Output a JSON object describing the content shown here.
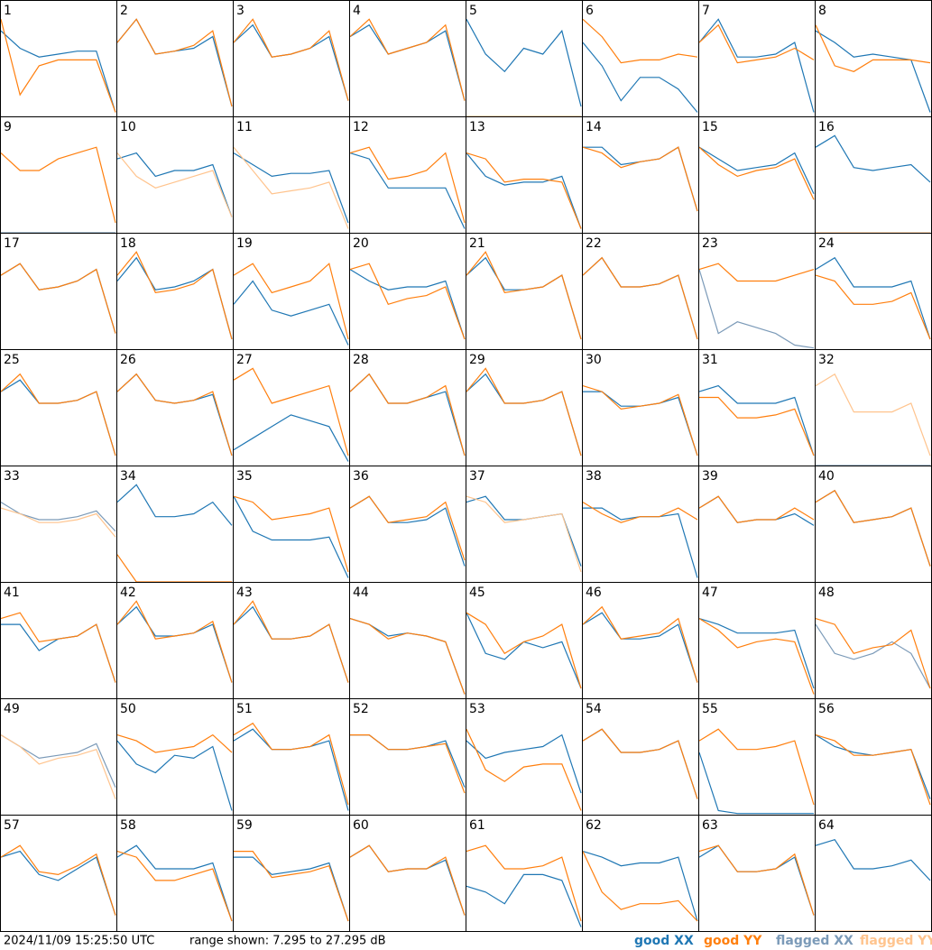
{
  "chart_data": {
    "type": "line",
    "timestamp": "2024/11/09 15:25:50 UTC",
    "range_text": "range shown: 7.295 to 27.295 dB",
    "ylim": [
      7.295,
      27.295
    ],
    "legend": [
      {
        "label": "good XX",
        "color": "#1f77b4"
      },
      {
        "label": "good YY",
        "color": "#ff7f0e"
      },
      {
        "label": "flagged XX",
        "color": "#7b9ab8"
      },
      {
        "label": "flagged YY",
        "color": "#ffc48e"
      }
    ],
    "panels": [
      {
        "label": "1",
        "xx": [
          22,
          19,
          17.5,
          18,
          18.5,
          18.5,
          8
        ],
        "yy": [
          24,
          11,
          16,
          17,
          17,
          17,
          8
        ]
      },
      {
        "label": "2",
        "xx": [
          20,
          24,
          18,
          18.5,
          19,
          21,
          9
        ],
        "yy": [
          20,
          24,
          18,
          18.5,
          19.5,
          22,
          9
        ]
      },
      {
        "label": "3",
        "xx": [
          20,
          23,
          17.5,
          18,
          19,
          21,
          10
        ],
        "yy": [
          20,
          24,
          17.5,
          18,
          19,
          22,
          10
        ]
      },
      {
        "label": "4",
        "xx": [
          21,
          23,
          18,
          19,
          20,
          22,
          10
        ],
        "yy": [
          21,
          24,
          18,
          19,
          20,
          23,
          10
        ]
      },
      {
        "label": "5",
        "xx": [
          24,
          18,
          15,
          19,
          18,
          22,
          9
        ],
        "yy": [
          7.3,
          7.3,
          7.3,
          7.3,
          7.3,
          7.3,
          7.3
        ],
        "yy_flagged": true
      },
      {
        "label": "6",
        "xx": [
          20,
          16,
          10,
          14,
          14,
          12,
          8
        ],
        "yy": [
          24,
          21,
          16.5,
          17,
          17,
          18,
          17.5
        ]
      },
      {
        "label": "7",
        "xx": [
          20,
          24,
          17.5,
          17.5,
          18,
          20,
          8
        ],
        "yy": [
          20,
          23,
          16.5,
          17,
          17.5,
          19,
          17
        ]
      },
      {
        "label": "8",
        "xx": [
          22,
          20,
          17.5,
          18,
          17.5,
          17,
          8
        ],
        "yy": [
          23,
          16,
          15,
          17,
          17,
          17,
          16.5
        ]
      },
      {
        "label": "9",
        "xx": [
          7.3,
          7.3,
          7.3,
          7.3,
          7.3,
          7.3,
          7.3
        ],
        "yy": [
          21,
          18,
          18,
          20,
          21,
          22,
          9
        ],
        "xx_flagged": true
      },
      {
        "label": "10",
        "xx": [
          20,
          21,
          17,
          18,
          18,
          19,
          10
        ],
        "yy": [
          21,
          17,
          15,
          16,
          17,
          18,
          10
        ],
        "yy_flagged": true
      },
      {
        "label": "11",
        "xx": [
          21,
          19,
          17,
          17.5,
          17.5,
          18,
          9
        ],
        "yy": [
          22,
          18,
          14,
          14.5,
          15,
          16,
          8
        ],
        "yy_flagged": true
      },
      {
        "label": "12",
        "xx": [
          21,
          20,
          15,
          15,
          15,
          15,
          8
        ],
        "yy": [
          21,
          22,
          16.5,
          17,
          18,
          21,
          9
        ]
      },
      {
        "label": "13",
        "xx": [
          21,
          17,
          15.5,
          16,
          16,
          17,
          8
        ],
        "yy": [
          21,
          20,
          16,
          16.5,
          16.5,
          16,
          8
        ]
      },
      {
        "label": "14",
        "xx": [
          22,
          22,
          19,
          19.5,
          20,
          22,
          11
        ],
        "yy": [
          22,
          21,
          18.5,
          19.5,
          20,
          22,
          11
        ]
      },
      {
        "label": "15",
        "xx": [
          22,
          20,
          18,
          18.5,
          19,
          21,
          14
        ],
        "yy": [
          22,
          19,
          17,
          18,
          18.5,
          20,
          13
        ]
      },
      {
        "label": "16",
        "xx": [
          22,
          24,
          18.5,
          18,
          18.5,
          19,
          16
        ],
        "yy": [
          7.3,
          7.3,
          7.3,
          7.3,
          7.3,
          7.3,
          7.3
        ],
        "yy_flagged": true
      },
      {
        "label": "17",
        "xx": [
          20,
          22,
          17.5,
          18,
          19,
          21,
          10
        ],
        "yy": [
          20,
          22,
          17.5,
          18,
          19,
          21,
          10
        ]
      },
      {
        "label": "18",
        "xx": [
          19,
          23,
          17.5,
          18,
          19,
          21,
          9
        ],
        "yy": [
          20,
          24,
          17,
          17.5,
          18.5,
          21,
          9
        ]
      },
      {
        "label": "19",
        "xx": [
          15,
          19,
          14,
          13,
          14,
          15,
          8
        ],
        "yy": [
          20,
          22,
          17,
          18,
          19,
          22,
          9
        ]
      },
      {
        "label": "20",
        "xx": [
          21,
          19,
          17.5,
          18,
          18,
          19,
          9
        ],
        "yy": [
          21,
          22,
          15,
          16,
          16.5,
          18,
          9
        ]
      },
      {
        "label": "21",
        "xx": [
          20,
          23,
          17.5,
          17.5,
          18,
          20,
          9
        ],
        "yy": [
          20,
          24,
          17,
          17.5,
          18,
          20,
          9
        ]
      },
      {
        "label": "22",
        "xx": [
          20,
          23,
          18,
          18,
          18.5,
          20,
          9
        ],
        "yy": [
          20,
          23,
          18,
          18,
          18.5,
          20,
          9
        ]
      },
      {
        "label": "23",
        "xx": [
          21,
          10,
          12,
          11,
          10,
          8,
          7.5
        ],
        "yy": [
          21,
          22,
          19,
          19,
          19,
          20,
          21
        ],
        "xx_flagged": true
      },
      {
        "label": "24",
        "xx": [
          21,
          23,
          18,
          18,
          18,
          19,
          9
        ],
        "yy": [
          20,
          19,
          15,
          15,
          15.5,
          17,
          9
        ]
      },
      {
        "label": "25",
        "xx": [
          20,
          22,
          18,
          18,
          18.5,
          20,
          9
        ],
        "yy": [
          20,
          23,
          18,
          18,
          18.5,
          20,
          9
        ]
      },
      {
        "label": "26",
        "xx": [
          20,
          23,
          18.5,
          18,
          18.5,
          19.5,
          9
        ],
        "yy": [
          20,
          23,
          18.5,
          18,
          18.5,
          20,
          9
        ]
      },
      {
        "label": "27",
        "xx": [
          10,
          12,
          14,
          16,
          15,
          14,
          8
        ],
        "yy": [
          22,
          24,
          18,
          19,
          20,
          21,
          9
        ]
      },
      {
        "label": "28",
        "xx": [
          20,
          23,
          18,
          18,
          19,
          20,
          9
        ],
        "yy": [
          20,
          23,
          18,
          18,
          19,
          21,
          9
        ]
      },
      {
        "label": "29",
        "xx": [
          20,
          23,
          18,
          18,
          18.5,
          20,
          9
        ],
        "yy": [
          20,
          24,
          18,
          18,
          18.5,
          20,
          9
        ]
      },
      {
        "label": "30",
        "xx": [
          20,
          20,
          17.5,
          17.5,
          18,
          19,
          9
        ],
        "yy": [
          21,
          20,
          17,
          17.5,
          18,
          19.5,
          9
        ]
      },
      {
        "label": "31",
        "xx": [
          20,
          21,
          18,
          18,
          18,
          19,
          9
        ],
        "yy": [
          19,
          19,
          15.5,
          15.5,
          16,
          17,
          9
        ]
      },
      {
        "label": "32",
        "xx": [
          7.3,
          7.3,
          7.3,
          7.3,
          7.3,
          7.3,
          7.3
        ],
        "yy": [
          21,
          23,
          16.5,
          16.5,
          16.5,
          18,
          9
        ],
        "xx_flagged": true,
        "yy_flagged": true
      },
      {
        "label": "33",
        "xx": [
          21,
          19,
          18,
          18,
          18.5,
          19.5,
          16
        ],
        "yy": [
          20,
          19,
          17.5,
          17.5,
          18,
          19,
          15
        ],
        "xx_flagged": true,
        "yy_flagged": true
      },
      {
        "label": "34",
        "xx": [
          21,
          24,
          18.5,
          18.5,
          19,
          21,
          17
        ],
        "yy": [
          12,
          7.3,
          7.3,
          7.3,
          7.3,
          7.3,
          7.3
        ]
      },
      {
        "label": "35",
        "xx": [
          22,
          16,
          14.5,
          14.5,
          14.5,
          15,
          8
        ],
        "yy": [
          22,
          21,
          18,
          18.5,
          19,
          20,
          9
        ]
      },
      {
        "label": "36",
        "xx": [
          20,
          22,
          17.5,
          17.5,
          18,
          20,
          10
        ],
        "yy": [
          20,
          22,
          17.5,
          18,
          18.5,
          21,
          11
        ]
      },
      {
        "label": "37",
        "xx": [
          21,
          22,
          18,
          18,
          18.5,
          19,
          10
        ],
        "yy": [
          22,
          21,
          17.5,
          18,
          18.5,
          19,
          9
        ],
        "yy_flagged": true
      },
      {
        "label": "38",
        "xx": [
          20,
          20,
          18,
          18.5,
          18.5,
          19,
          8
        ],
        "yy": [
          21,
          19,
          17.5,
          18.5,
          18.5,
          20,
          18
        ]
      },
      {
        "label": "39",
        "xx": [
          20,
          22,
          17.5,
          18,
          18,
          19,
          17
        ],
        "yy": [
          20,
          22,
          17.5,
          18,
          18,
          20,
          18
        ]
      },
      {
        "label": "40",
        "xx": [
          21,
          23,
          17.5,
          18,
          18.5,
          20,
          10
        ],
        "yy": [
          21,
          23,
          17.5,
          18,
          18.5,
          20,
          10
        ]
      },
      {
        "label": "41",
        "xx": [
          20,
          20,
          15.5,
          17.5,
          18,
          20,
          10
        ],
        "yy": [
          21,
          22,
          17,
          17.5,
          18,
          20,
          10
        ]
      },
      {
        "label": "42",
        "xx": [
          20,
          23,
          18,
          18,
          18.5,
          20,
          10
        ],
        "yy": [
          20,
          24,
          17.5,
          18,
          18.5,
          20.5,
          10
        ]
      },
      {
        "label": "43",
        "xx": [
          20,
          23,
          17.5,
          17.5,
          18,
          20,
          10
        ],
        "yy": [
          20,
          24,
          17.5,
          17.5,
          18,
          20,
          10
        ]
      },
      {
        "label": "44",
        "xx": [
          21,
          20,
          18,
          18.5,
          18,
          17,
          8
        ],
        "yy": [
          21,
          20,
          17.5,
          18.5,
          18,
          17,
          8
        ]
      },
      {
        "label": "45",
        "xx": [
          22,
          15,
          14,
          17,
          16,
          17,
          9
        ],
        "yy": [
          22,
          20,
          15,
          17,
          18,
          20,
          9
        ]
      },
      {
        "label": "46",
        "xx": [
          20,
          22,
          17.5,
          17.5,
          18,
          20,
          10
        ],
        "yy": [
          20,
          23,
          17.5,
          18,
          18.5,
          21,
          10
        ]
      },
      {
        "label": "47",
        "xx": [
          21,
          20,
          18.5,
          18.5,
          18.5,
          19,
          9
        ],
        "yy": [
          21,
          19,
          16,
          17,
          17.5,
          17,
          8
        ]
      },
      {
        "label": "48",
        "xx": [
          20,
          15,
          14,
          15,
          17,
          15,
          9
        ],
        "yy": [
          21,
          20,
          15,
          16,
          16.5,
          19,
          9
        ],
        "xx_flagged": true
      },
      {
        "label": "49",
        "xx": [
          21,
          19,
          17,
          17.5,
          18,
          19.5,
          12
        ],
        "yy": [
          21,
          19,
          16,
          17,
          17.5,
          18.5,
          10
        ],
        "xx_flagged": true,
        "yy_flagged": true
      },
      {
        "label": "50",
        "xx": [
          20,
          16,
          14.5,
          17.5,
          17,
          19,
          8
        ],
        "yy": [
          21,
          20,
          18,
          18.5,
          19,
          21,
          18
        ]
      },
      {
        "label": "51",
        "xx": [
          20,
          22,
          18.5,
          18.5,
          19,
          20,
          8
        ],
        "yy": [
          21,
          23,
          18.5,
          18.5,
          19,
          21,
          9
        ]
      },
      {
        "label": "52",
        "xx": [
          21,
          21,
          18.5,
          18.5,
          19,
          20,
          12
        ],
        "yy": [
          21,
          21,
          18.5,
          18.5,
          19,
          19.5,
          11
        ]
      },
      {
        "label": "53",
        "xx": [
          20,
          17,
          18,
          18.5,
          19,
          21,
          11
        ],
        "yy": [
          22,
          15,
          13,
          15.5,
          16,
          16,
          8
        ]
      },
      {
        "label": "54",
        "xx": [
          20,
          22,
          18,
          18,
          18.5,
          20,
          10
        ],
        "yy": [
          20,
          22,
          18,
          18,
          18.5,
          20,
          10
        ]
      },
      {
        "label": "55",
        "xx": [
          18,
          8,
          7.5,
          7.5,
          7.5,
          7.5,
          7.5
        ],
        "yy": [
          20,
          22,
          18.5,
          18.5,
          19,
          20,
          9
        ]
      },
      {
        "label": "56",
        "xx": [
          21,
          19,
          18,
          17.5,
          18,
          18.5,
          10
        ],
        "yy": [
          21,
          20,
          17.5,
          17.5,
          18,
          18.5,
          9
        ]
      },
      {
        "label": "57",
        "xx": [
          20,
          21,
          17,
          16,
          18,
          20,
          10
        ],
        "yy": [
          20,
          22,
          17.5,
          17,
          18.5,
          20.5,
          10
        ]
      },
      {
        "label": "58",
        "xx": [
          20,
          22,
          18,
          18,
          18,
          19,
          9
        ],
        "yy": [
          21,
          20,
          16,
          16,
          17,
          18,
          9
        ]
      },
      {
        "label": "59",
        "xx": [
          20,
          20,
          17,
          17.5,
          18,
          19,
          9
        ],
        "yy": [
          21,
          21,
          16.5,
          17,
          17.5,
          18.5,
          9
        ]
      },
      {
        "label": "60",
        "xx": [
          20,
          22,
          17.5,
          18,
          18,
          19.5,
          10
        ],
        "yy": [
          20,
          22,
          17.5,
          18,
          18,
          20,
          10
        ]
      },
      {
        "label": "61",
        "xx": [
          15,
          14,
          12,
          17,
          17,
          16,
          8
        ],
        "yy": [
          21,
          22,
          18,
          18,
          18.5,
          20,
          9
        ]
      },
      {
        "label": "62",
        "xx": [
          21,
          20,
          18.5,
          19,
          19,
          20,
          9
        ],
        "yy": [
          21,
          14,
          11,
          12,
          12,
          12.5,
          9
        ]
      },
      {
        "label": "63",
        "xx": [
          20,
          22,
          17.5,
          17.5,
          18,
          20,
          10
        ],
        "yy": [
          21,
          22,
          17.5,
          17.5,
          18,
          20.5,
          10
        ]
      },
      {
        "label": "64",
        "xx": [
          22,
          23,
          18,
          18,
          18.5,
          19.5,
          16
        ],
        "yy": [
          7.3,
          7.3,
          7.3,
          7.3,
          7.3,
          7.3,
          7.3
        ],
        "yy_flagged": true
      }
    ]
  }
}
